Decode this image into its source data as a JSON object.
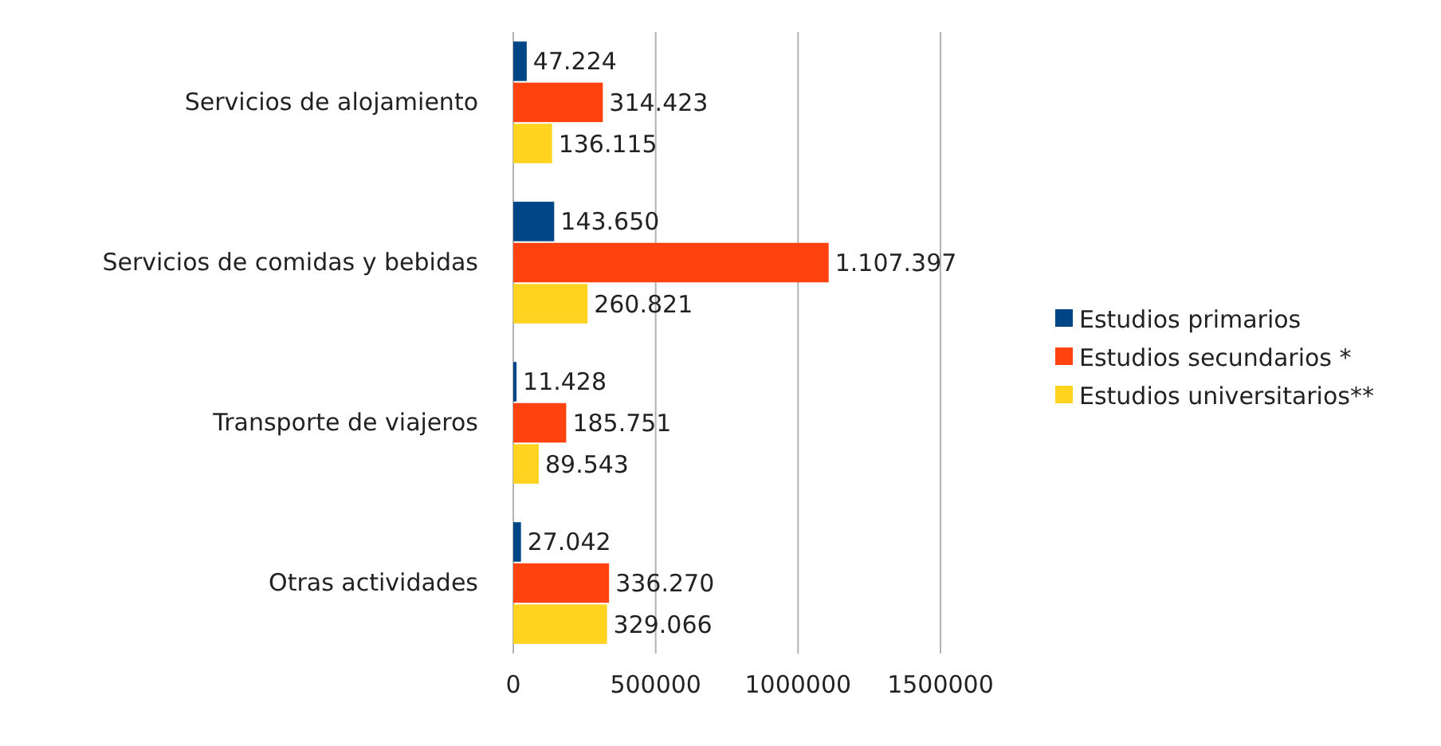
{
  "chart_data": {
    "type": "bar",
    "orientation": "horizontal",
    "categories": [
      "Servicios de alojamiento",
      "Servicios de comidas y bebidas",
      "Transporte de viajeros",
      "Otras actividades"
    ],
    "series": [
      {
        "name": "Estudios primarios",
        "color": "#004586",
        "values": [
          47224,
          143650,
          11428,
          27042
        ],
        "value_labels": [
          "47.224",
          "143.650",
          "11.428",
          "27.042"
        ]
      },
      {
        "name": "Estudios secundarios *",
        "color": "#ff420e",
        "values": [
          314423,
          1107397,
          185751,
          336270
        ],
        "value_labels": [
          "314.423",
          "1.107.397",
          "185.751",
          "336.270"
        ]
      },
      {
        "name": "Estudios universitarios**",
        "color": "#ffd320",
        "values": [
          136115,
          260821,
          89543,
          329066
        ],
        "value_labels": [
          "136.115",
          "260.821",
          "89.543",
          "329.066"
        ]
      }
    ],
    "xlim": [
      0,
      1500000
    ],
    "xticks": [
      0,
      500000,
      1000000,
      1500000
    ],
    "grid": "x",
    "legend": "right"
  }
}
